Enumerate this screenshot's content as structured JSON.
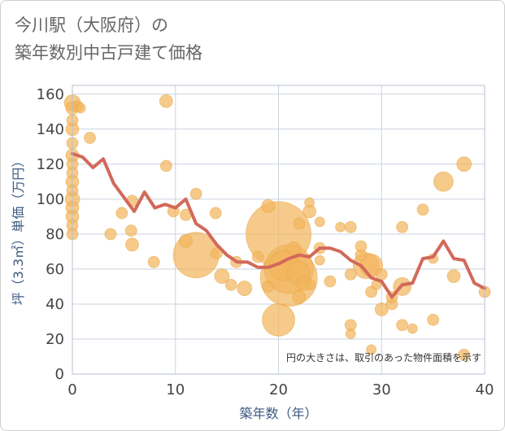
{
  "title_line1": "今川駅（大阪府）の",
  "title_line2": "築年数別中古戸建て価格",
  "chart_data": {
    "type": "scatter",
    "xlabel": "築年数（年）",
    "ylabel": "坪（3.3㎡）単価（万円）",
    "xlim": [
      0,
      40
    ],
    "ylim": [
      0,
      165
    ],
    "xticks": [
      0,
      10,
      20,
      30,
      40
    ],
    "yticks": [
      0,
      20,
      40,
      60,
      80,
      100,
      120,
      140,
      160
    ],
    "grid": true,
    "annotation": "円の大きさは、取引のあった物件面積を示す",
    "colors": {
      "bubble": "#f2b65e",
      "bubble_edge": "#e6a540",
      "line": "#d2695a",
      "grid": "#c9d3df",
      "plot_border": "#b5c2d1"
    },
    "points": [
      {
        "x": 0,
        "y": 155,
        "s": 10
      },
      {
        "x": 0,
        "y": 152,
        "s": 8
      },
      {
        "x": 0,
        "y": 145,
        "s": 7
      },
      {
        "x": 0,
        "y": 140,
        "s": 8
      },
      {
        "x": 0,
        "y": 132,
        "s": 7
      },
      {
        "x": 0,
        "y": 125,
        "s": 8
      },
      {
        "x": 0,
        "y": 120,
        "s": 7
      },
      {
        "x": 0,
        "y": 115,
        "s": 7
      },
      {
        "x": 0,
        "y": 110,
        "s": 8
      },
      {
        "x": 0,
        "y": 105,
        "s": 7
      },
      {
        "x": 0,
        "y": 100,
        "s": 9
      },
      {
        "x": 0,
        "y": 95,
        "s": 8
      },
      {
        "x": 0,
        "y": 90,
        "s": 8
      },
      {
        "x": 0,
        "y": 85,
        "s": 7
      },
      {
        "x": 0,
        "y": 80,
        "s": 7
      },
      {
        "x": 0.5,
        "y": 153,
        "s": 7
      },
      {
        "x": 0.8,
        "y": 152,
        "s": 6
      },
      {
        "x": 1.7,
        "y": 135,
        "s": 7
      },
      {
        "x": 3.7,
        "y": 80,
        "s": 7
      },
      {
        "x": 4.8,
        "y": 92,
        "s": 7
      },
      {
        "x": 5.7,
        "y": 82,
        "s": 7
      },
      {
        "x": 5.8,
        "y": 74,
        "s": 8
      },
      {
        "x": 5.8,
        "y": 99,
        "s": 7
      },
      {
        "x": 7.9,
        "y": 64,
        "s": 7
      },
      {
        "x": 9.1,
        "y": 156,
        "s": 8
      },
      {
        "x": 9.1,
        "y": 119,
        "s": 7
      },
      {
        "x": 9.8,
        "y": 93,
        "s": 7
      },
      {
        "x": 11,
        "y": 76,
        "s": 8
      },
      {
        "x": 11,
        "y": 91,
        "s": 7
      },
      {
        "x": 12,
        "y": 68,
        "s": 28
      },
      {
        "x": 12,
        "y": 103,
        "s": 7
      },
      {
        "x": 13.9,
        "y": 92,
        "s": 7
      },
      {
        "x": 14,
        "y": 69,
        "s": 7
      },
      {
        "x": 14.5,
        "y": 56,
        "s": 9
      },
      {
        "x": 15.4,
        "y": 51,
        "s": 7
      },
      {
        "x": 15.9,
        "y": 64,
        "s": 7
      },
      {
        "x": 16.7,
        "y": 49,
        "s": 9
      },
      {
        "x": 18,
        "y": 67,
        "s": 7
      },
      {
        "x": 19,
        "y": 96,
        "s": 8
      },
      {
        "x": 19,
        "y": 50,
        "s": 7
      },
      {
        "x": 20,
        "y": 80,
        "s": 40
      },
      {
        "x": 20,
        "y": 31,
        "s": 20
      },
      {
        "x": 20.5,
        "y": 62,
        "s": 18
      },
      {
        "x": 21,
        "y": 55,
        "s": 35
      },
      {
        "x": 21,
        "y": 60,
        "s": 30
      },
      {
        "x": 21.5,
        "y": 72,
        "s": 8
      },
      {
        "x": 21.9,
        "y": 58,
        "s": 14
      },
      {
        "x": 22,
        "y": 86,
        "s": 7
      },
      {
        "x": 22,
        "y": 44,
        "s": 8
      },
      {
        "x": 22.5,
        "y": 52,
        "s": 9
      },
      {
        "x": 23,
        "y": 93,
        "s": 8
      },
      {
        "x": 23,
        "y": 98,
        "s": 6
      },
      {
        "x": 23.1,
        "y": 51,
        "s": 6
      },
      {
        "x": 24,
        "y": 87,
        "s": 6
      },
      {
        "x": 24,
        "y": 72,
        "s": 7
      },
      {
        "x": 24,
        "y": 65,
        "s": 6
      },
      {
        "x": 25,
        "y": 53,
        "s": 7
      },
      {
        "x": 26,
        "y": 84,
        "s": 6
      },
      {
        "x": 27,
        "y": 84,
        "s": 7
      },
      {
        "x": 27,
        "y": 57,
        "s": 7
      },
      {
        "x": 27,
        "y": 28,
        "s": 7
      },
      {
        "x": 27,
        "y": 23,
        "s": 6
      },
      {
        "x": 28,
        "y": 68,
        "s": 7
      },
      {
        "x": 28,
        "y": 73,
        "s": 7
      },
      {
        "x": 28.5,
        "y": 62,
        "s": 16
      },
      {
        "x": 29,
        "y": 62,
        "s": 14
      },
      {
        "x": 29,
        "y": 14,
        "s": 6
      },
      {
        "x": 29,
        "y": 47,
        "s": 7
      },
      {
        "x": 29.5,
        "y": 51,
        "s": 6
      },
      {
        "x": 30,
        "y": 57,
        "s": 7
      },
      {
        "x": 30,
        "y": 37,
        "s": 8
      },
      {
        "x": 31,
        "y": 40,
        "s": 7
      },
      {
        "x": 31,
        "y": 44,
        "s": 7
      },
      {
        "x": 32,
        "y": 50,
        "s": 11
      },
      {
        "x": 32,
        "y": 28,
        "s": 7
      },
      {
        "x": 32,
        "y": 84,
        "s": 7
      },
      {
        "x": 33,
        "y": 26,
        "s": 6
      },
      {
        "x": 34,
        "y": 94,
        "s": 7
      },
      {
        "x": 35,
        "y": 31,
        "s": 7
      },
      {
        "x": 35,
        "y": 66,
        "s": 6
      },
      {
        "x": 36,
        "y": 110,
        "s": 12
      },
      {
        "x": 37,
        "y": 56,
        "s": 8
      },
      {
        "x": 38,
        "y": 120,
        "s": 9
      },
      {
        "x": 38,
        "y": 11,
        "s": 7
      },
      {
        "x": 40,
        "y": 47,
        "s": 7
      }
    ],
    "series": [
      {
        "x": [
          0,
          1,
          2,
          3,
          4,
          5,
          6,
          7,
          8,
          9,
          10,
          11,
          12,
          13,
          14,
          15,
          16,
          17,
          18,
          19,
          20,
          21,
          22,
          23,
          24,
          25,
          26,
          27,
          28,
          29,
          30,
          31,
          32,
          33,
          34,
          35,
          36,
          37,
          38,
          39,
          40
        ],
        "values": [
          126,
          124,
          118,
          123,
          109,
          101,
          93,
          104,
          95,
          97,
          95,
          100,
          86,
          82,
          74,
          68,
          64,
          64,
          61,
          61,
          63,
          66,
          68,
          67,
          72,
          72,
          70,
          65,
          62,
          55,
          53,
          44,
          51,
          52,
          66,
          67,
          76,
          66,
          65,
          52,
          49
        ]
      }
    ]
  }
}
